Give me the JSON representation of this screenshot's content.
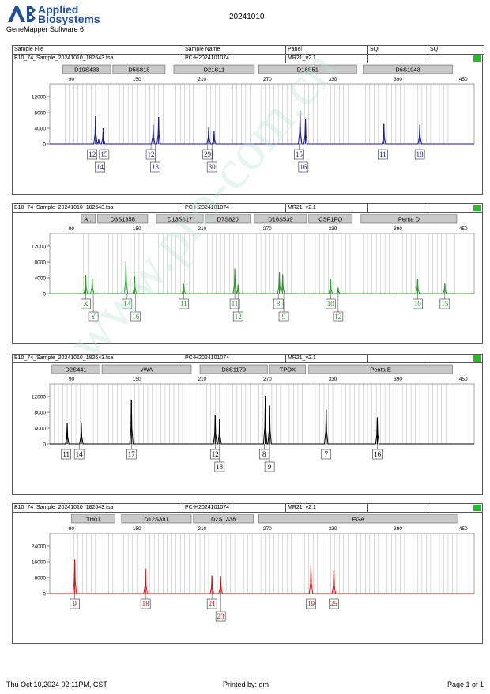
{
  "header": {
    "brand_line1": "Applied",
    "brand_line2": "Biosystems",
    "software": "GeneMapper Software 6",
    "report_title": "20241010"
  },
  "columns": [
    "Sample File",
    "Sample Name",
    "Panel",
    "SQI",
    "SQ"
  ],
  "footer": {
    "timestamp": "Thu Oct 10,2024 02:11PM, CST",
    "printed_by": "Printed by: gm",
    "page": "Page 1 of 1"
  },
  "watermark": "www.pro-com.cn",
  "colors": {
    "blue": "#1a1a8c",
    "green": "#2a9a2a",
    "black": "#000000",
    "red": "#c41c1c",
    "status": "#1ec21e"
  },
  "chart_data": [
    {
      "type": "line",
      "sample_file": "B10_74_Sample_20241010_182643.fsa",
      "sample_name": "PC-H2024101074",
      "panel": "MR21_v2.1",
      "color": "#1a1a8c",
      "x_ticks": [
        90,
        150,
        210,
        270,
        330,
        390,
        450
      ],
      "y_ticks": [
        "12000",
        "8000",
        "4000",
        "0"
      ],
      "ylim": [
        0,
        14000
      ],
      "xlim": [
        70,
        460
      ],
      "loci": [
        {
          "name": "D19S433",
          "start": 82,
          "end": 126
        },
        {
          "name": "D5S818",
          "start": 128,
          "end": 176
        },
        {
          "name": "D21S11",
          "start": 184,
          "end": 258
        },
        {
          "name": "D18S51",
          "start": 262,
          "end": 352
        },
        {
          "name": "D6S1043",
          "start": 358,
          "end": 440
        }
      ],
      "peaks": [
        {
          "x": 112,
          "h": 7200
        },
        {
          "x": 115,
          "h": 1200
        },
        {
          "x": 119,
          "h": 4000
        },
        {
          "x": 165,
          "h": 4900
        },
        {
          "x": 170,
          "h": 6800
        },
        {
          "x": 216,
          "h": 4300
        },
        {
          "x": 221,
          "h": 3300
        },
        {
          "x": 300,
          "h": 8500
        },
        {
          "x": 305,
          "h": 6200
        },
        {
          "x": 377,
          "h": 5100
        },
        {
          "x": 410,
          "h": 4900
        }
      ],
      "labels": [
        {
          "text": "12",
          "x": 109,
          "row": 1
        },
        {
          "text": "15",
          "x": 120,
          "row": 1
        },
        {
          "text": "14",
          "x": 116,
          "row": 2
        },
        {
          "text": "12",
          "x": 163,
          "row": 1
        },
        {
          "text": "13",
          "x": 167,
          "row": 2
        },
        {
          "text": "29",
          "x": 215,
          "row": 1
        },
        {
          "text": "30",
          "x": 219,
          "row": 2
        },
        {
          "text": "15",
          "x": 299,
          "row": 1
        },
        {
          "text": "16",
          "x": 303,
          "row": 2
        },
        {
          "text": "11",
          "x": 376,
          "row": 1
        },
        {
          "text": "18",
          "x": 410,
          "row": 1
        }
      ]
    },
    {
      "type": "line",
      "sample_file": "B10_74_Sample_20241010_182643.fsa",
      "sample_name": "PC-H2024101074",
      "panel": "MR21_v2.1",
      "color": "#2a9a2a",
      "x_ticks": [
        90,
        150,
        210,
        270,
        330,
        390,
        450
      ],
      "y_ticks": [
        "12000",
        "8000",
        "4000",
        "0"
      ],
      "ylim": [
        0,
        14000
      ],
      "xlim": [
        70,
        460
      ],
      "loci": [
        {
          "name": "A...",
          "start": 99,
          "end": 112
        },
        {
          "name": "D3S1358",
          "start": 114,
          "end": 160
        },
        {
          "name": "D13S317",
          "start": 168,
          "end": 211
        },
        {
          "name": "D7S820",
          "start": 213,
          "end": 254
        },
        {
          "name": "D16S539",
          "start": 258,
          "end": 306
        },
        {
          "name": "CSF1PO",
          "start": 308,
          "end": 348
        },
        {
          "name": "Penta D",
          "start": 356,
          "end": 444
        }
      ],
      "peaks": [
        {
          "x": 103,
          "h": 4600
        },
        {
          "x": 109,
          "h": 3800
        },
        {
          "x": 140,
          "h": 8200
        },
        {
          "x": 148,
          "h": 4400
        },
        {
          "x": 193,
          "h": 2500
        },
        {
          "x": 240,
          "h": 6300
        },
        {
          "x": 243,
          "h": 2300
        },
        {
          "x": 281,
          "h": 5400
        },
        {
          "x": 284,
          "h": 4900
        },
        {
          "x": 328,
          "h": 3600
        },
        {
          "x": 335,
          "h": 1500
        },
        {
          "x": 408,
          "h": 3800
        },
        {
          "x": 433,
          "h": 2600
        }
      ],
      "labels": [
        {
          "text": "X",
          "x": 103,
          "row": 1
        },
        {
          "text": "Y",
          "x": 110,
          "row": 2
        },
        {
          "text": "14",
          "x": 141,
          "row": 1
        },
        {
          "text": "16",
          "x": 149,
          "row": 2
        },
        {
          "text": "11",
          "x": 193,
          "row": 1
        },
        {
          "text": "11",
          "x": 240,
          "row": 1
        },
        {
          "text": "12",
          "x": 243,
          "row": 2
        },
        {
          "text": "8",
          "x": 280,
          "row": 1
        },
        {
          "text": "9",
          "x": 285,
          "row": 2
        },
        {
          "text": "10",
          "x": 328,
          "row": 1
        },
        {
          "text": "12",
          "x": 335,
          "row": 2
        },
        {
          "text": "10",
          "x": 408,
          "row": 1
        },
        {
          "text": "15",
          "x": 433,
          "row": 1
        }
      ]
    },
    {
      "type": "line",
      "sample_file": "B10_74_Sample_20241010_182643.fsa",
      "sample_name": "PC-H2024101074",
      "panel": "MR21_v2.1",
      "color": "#000000",
      "x_ticks": [
        90,
        150,
        210,
        270,
        330,
        390,
        450
      ],
      "y_ticks": [
        "12000",
        "8000",
        "4000",
        "0"
      ],
      "ylim": [
        0,
        14000
      ],
      "xlim": [
        70,
        460
      ],
      "loci": [
        {
          "name": "D2S441",
          "start": 72,
          "end": 116
        },
        {
          "name": "vWA",
          "start": 118,
          "end": 200
        },
        {
          "name": "D8S1179",
          "start": 208,
          "end": 270
        },
        {
          "name": "TPOX",
          "start": 272,
          "end": 305
        },
        {
          "name": "Penta E",
          "start": 308,
          "end": 440
        }
      ],
      "peaks": [
        {
          "x": 86,
          "h": 5400
        },
        {
          "x": 99,
          "h": 5300
        },
        {
          "x": 145,
          "h": 11000
        },
        {
          "x": 222,
          "h": 7400
        },
        {
          "x": 226,
          "h": 6200
        },
        {
          "x": 268,
          "h": 12000
        },
        {
          "x": 272,
          "h": 9700
        },
        {
          "x": 324,
          "h": 8700
        },
        {
          "x": 371,
          "h": 6700
        }
      ],
      "labels": [
        {
          "text": "11",
          "x": 85,
          "row": 1
        },
        {
          "text": "14",
          "x": 97,
          "row": 1
        },
        {
          "text": "17",
          "x": 145,
          "row": 1
        },
        {
          "text": "12",
          "x": 222,
          "row": 1
        },
        {
          "text": "13",
          "x": 226,
          "row": 2
        },
        {
          "text": "8",
          "x": 267,
          "row": 1
        },
        {
          "text": "9",
          "x": 272,
          "row": 2
        },
        {
          "text": "7",
          "x": 324,
          "row": 1
        },
        {
          "text": "16",
          "x": 371,
          "row": 1
        }
      ]
    },
    {
      "type": "line",
      "sample_file": "B10_74_Sample_20241010_182643.fsa",
      "sample_name": "PC-H2024101074",
      "panel": "MR21_v2.1",
      "color": "#c41c1c",
      "x_ticks": [
        90,
        150,
        210,
        270,
        330,
        390,
        450
      ],
      "y_ticks": [
        "24000",
        "16000",
        "8000",
        "0"
      ],
      "ylim": [
        0,
        28000
      ],
      "xlim": [
        70,
        460
      ],
      "loci": [
        {
          "name": "TH01",
          "start": 90,
          "end": 130
        },
        {
          "name": "D12S391",
          "start": 136,
          "end": 200
        },
        {
          "name": "D2S1338",
          "start": 202,
          "end": 257
        },
        {
          "name": "FGA",
          "start": 262,
          "end": 445
        }
      ],
      "peaks": [
        {
          "x": 93,
          "h": 17000
        },
        {
          "x": 158,
          "h": 12500
        },
        {
          "x": 219,
          "h": 9000
        },
        {
          "x": 227,
          "h": 8700
        },
        {
          "x": 310,
          "h": 14200
        },
        {
          "x": 331,
          "h": 11100
        }
      ],
      "labels": [
        {
          "text": "9",
          "x": 93,
          "row": 1
        },
        {
          "text": "18",
          "x": 158,
          "row": 1
        },
        {
          "text": "21",
          "x": 219,
          "row": 1
        },
        {
          "text": "23",
          "x": 227,
          "row": 2
        },
        {
          "text": "19",
          "x": 310,
          "row": 1
        },
        {
          "text": "25",
          "x": 331,
          "row": 1
        }
      ]
    }
  ]
}
